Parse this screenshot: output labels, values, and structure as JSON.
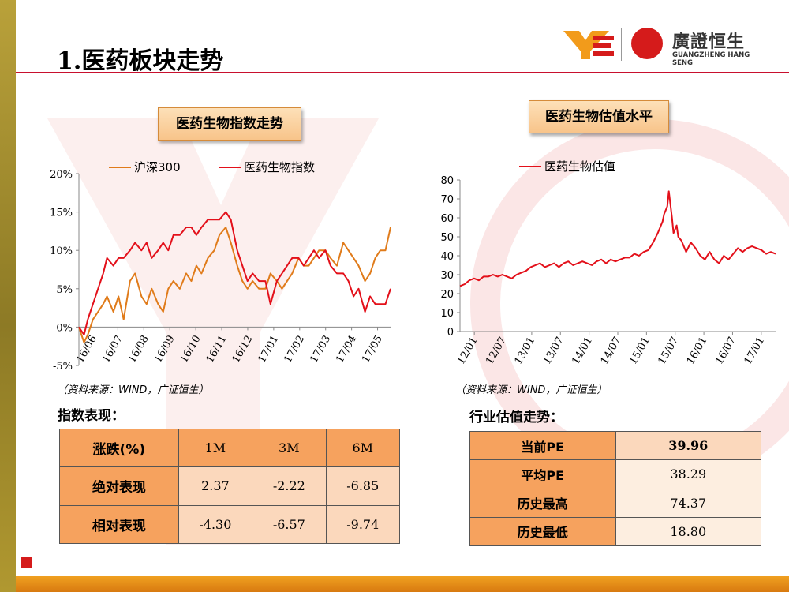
{
  "title": "1.医药板块走势",
  "logo": {
    "cn": "廣證恒生",
    "en": "GUANGZHENG HANG SENG"
  },
  "colors": {
    "hs300": "#e07b1a",
    "index": "#e3101a",
    "header": "#f6a25e",
    "cell": "#fbd8bc",
    "accent": "#c8102e"
  },
  "chart1_title": "医药生物指数走势",
  "chart2_title": "医药生物估值水平",
  "source_note": "（资料来源：WIND，广证恒生）",
  "chart_data": [
    {
      "type": "line",
      "legend_placement": "top",
      "ylim": [
        -0.05,
        0.2
      ],
      "yticks": [
        "-5%",
        "0%",
        "5%",
        "10%",
        "15%",
        "20%"
      ],
      "xticks": [
        "16/06",
        "16/07",
        "16/08",
        "16/09",
        "16/10",
        "16/11",
        "16/12",
        "17/01",
        "17/02",
        "17/03",
        "17/04",
        "17/05"
      ],
      "x": [
        0,
        4,
        7,
        11,
        15,
        19,
        22,
        27,
        31,
        35,
        40,
        44,
        49,
        53,
        57,
        62,
        66,
        70,
        74,
        79,
        84,
        88,
        92,
        96,
        101,
        106,
        110,
        115,
        119,
        124,
        128,
        132,
        136,
        141,
        146,
        150,
        155,
        159,
        163,
        167,
        172,
        176,
        180,
        184,
        188,
        193,
        197,
        202,
        207,
        211,
        215,
        219,
        224,
        228,
        232,
        236,
        240,
        244
      ],
      "series": [
        {
          "name": "沪深300",
          "values": [
            0.0,
            -0.02,
            -0.01,
            0.01,
            0.02,
            0.03,
            0.04,
            0.02,
            0.04,
            0.01,
            0.06,
            0.07,
            0.04,
            0.03,
            0.05,
            0.03,
            0.02,
            0.05,
            0.06,
            0.05,
            0.07,
            0.06,
            0.08,
            0.07,
            0.09,
            0.1,
            0.12,
            0.13,
            0.11,
            0.08,
            0.06,
            0.05,
            0.06,
            0.05,
            0.05,
            0.07,
            0.06,
            0.05,
            0.06,
            0.07,
            0.09,
            0.08,
            0.08,
            0.09,
            0.1,
            0.1,
            0.09,
            0.08,
            0.11,
            0.1,
            0.09,
            0.08,
            0.06,
            0.07,
            0.09,
            0.1,
            0.1,
            0.13
          ]
        },
        {
          "name": "医药生物指数",
          "values": [
            0.0,
            -0.01,
            0.01,
            0.03,
            0.05,
            0.07,
            0.09,
            0.08,
            0.09,
            0.09,
            0.1,
            0.11,
            0.1,
            0.11,
            0.09,
            0.1,
            0.11,
            0.1,
            0.12,
            0.12,
            0.13,
            0.13,
            0.12,
            0.13,
            0.14,
            0.14,
            0.14,
            0.15,
            0.14,
            0.1,
            0.08,
            0.06,
            0.07,
            0.06,
            0.06,
            0.03,
            0.06,
            0.07,
            0.08,
            0.09,
            0.09,
            0.08,
            0.09,
            0.1,
            0.09,
            0.1,
            0.08,
            0.07,
            0.07,
            0.06,
            0.04,
            0.05,
            0.02,
            0.04,
            0.03,
            0.03,
            0.03,
            0.05
          ]
        }
      ]
    },
    {
      "type": "line",
      "legend_placement": "top",
      "ylim": [
        0,
        80
      ],
      "yticks": [
        "0",
        "10",
        "20",
        "30",
        "40",
        "50",
        "60",
        "70",
        "80"
      ],
      "xticks": [
        "12/01",
        "12/07",
        "13/01",
        "13/07",
        "14/01",
        "14/07",
        "15/01",
        "15/07",
        "16/01",
        "16/07",
        "17/01"
      ],
      "x": [
        0,
        3,
        6,
        9,
        12,
        15,
        18,
        21,
        24,
        27,
        30,
        33,
        36,
        39,
        42,
        45,
        48,
        51,
        54,
        57,
        60,
        63,
        66,
        69,
        72,
        75,
        78,
        81,
        84,
        87,
        90,
        93,
        96,
        99,
        102,
        105,
        108,
        111,
        114,
        117,
        120,
        123,
        126,
        129,
        130,
        132,
        133,
        135,
        136,
        138,
        139,
        141,
        144,
        147,
        150,
        153,
        156,
        159,
        162,
        165,
        168,
        171,
        174,
        177,
        180,
        183,
        186,
        189,
        192,
        195,
        198,
        201
      ],
      "series": [
        {
          "name": "医药生物估值",
          "values": [
            24,
            25,
            27,
            28,
            27,
            29,
            29,
            30,
            29,
            30,
            29,
            28,
            30,
            31,
            32,
            34,
            35,
            36,
            34,
            35,
            36,
            34,
            36,
            37,
            35,
            36,
            37,
            36,
            35,
            37,
            38,
            36,
            38,
            37,
            38,
            39,
            39,
            41,
            40,
            42,
            43,
            47,
            52,
            58,
            62,
            66,
            74,
            60,
            52,
            56,
            50,
            48,
            42,
            47,
            44,
            40,
            38,
            42,
            38,
            36,
            40,
            38,
            41,
            44,
            42,
            44,
            45,
            44,
            43,
            41,
            42,
            41
          ]
        }
      ]
    }
  ],
  "perf_section": "指数表现：",
  "perf_table": {
    "header": [
      "涨跌(%)",
      "1M",
      "3M",
      "6M"
    ],
    "rows": [
      {
        "label": "绝对表现",
        "values": [
          "2.37",
          "-2.22",
          "-6.85"
        ]
      },
      {
        "label": "相对表现",
        "values": [
          "-4.30",
          "-6.57",
          "-9.74"
        ]
      }
    ]
  },
  "val_section": "行业估值走势：",
  "val_table": [
    {
      "label": "当前PE",
      "value": "39.96"
    },
    {
      "label": "平均PE",
      "value": "38.29"
    },
    {
      "label": "历史最高",
      "value": "74.37"
    },
    {
      "label": "历史最低",
      "value": "18.80"
    }
  ]
}
